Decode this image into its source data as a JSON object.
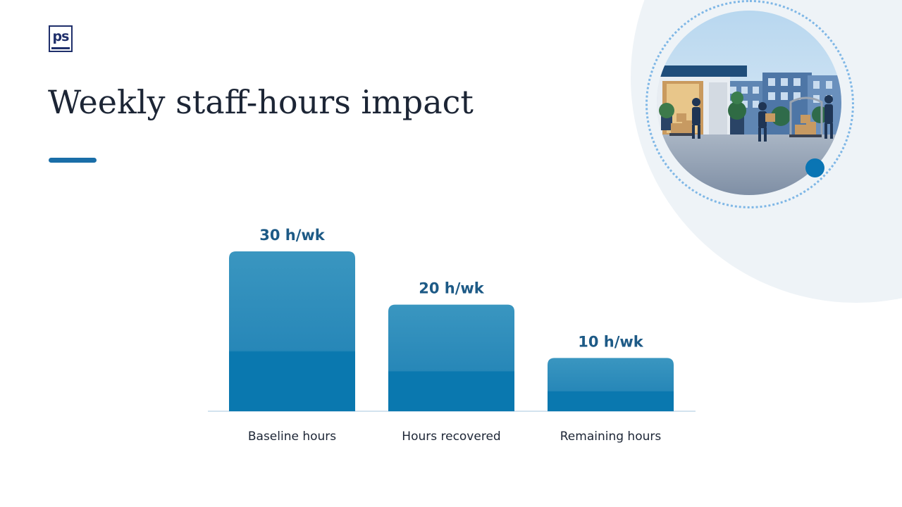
{
  "slide": {
    "title": "Weekly staff-hours impact",
    "logo_text": "ps",
    "colors": {
      "title": "#1c2535",
      "accent": "#1a6ea8",
      "bar_top": "#3a96c0",
      "bar_bottom": "#0a78af",
      "value_label": "#1d5a86",
      "corner_blob": "#eef3f7"
    },
    "image": {
      "icon": "hotel-delivery-photo"
    }
  },
  "chart_data": {
    "type": "bar",
    "title": "",
    "xlabel": "",
    "ylabel": "",
    "categories": [
      "Baseline hours",
      "Hours recovered",
      "Remaining hours"
    ],
    "values": [
      30,
      20,
      10
    ],
    "value_labels": [
      "30 h/wk",
      "20 h/wk",
      "10 h/wk"
    ],
    "unit": "h/wk",
    "ylim": [
      0,
      30
    ],
    "grid": false,
    "legend": "none"
  }
}
